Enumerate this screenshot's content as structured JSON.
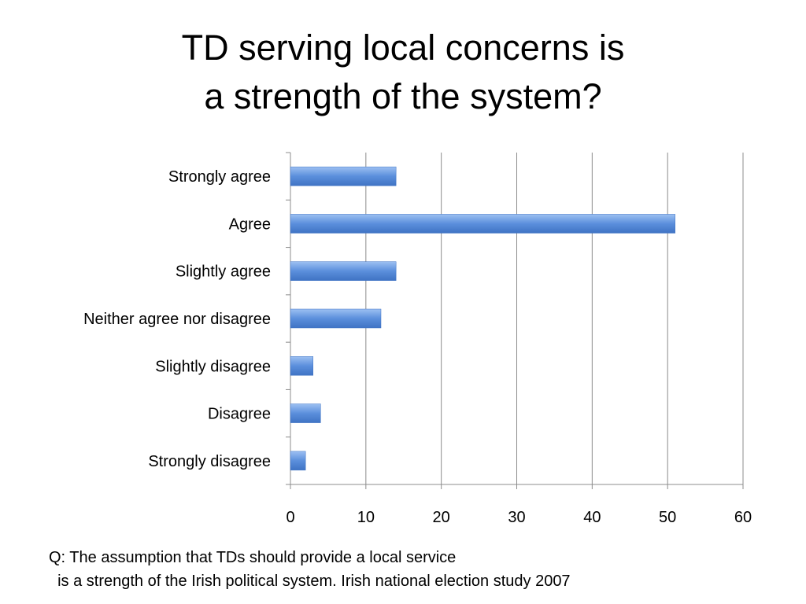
{
  "slide": {
    "title_line1": "TD serving local concerns is",
    "title_line2": "a strength of the system?",
    "caption_line1": "Q: The assumption that TDs should provide a local service",
    "caption_line2": "  is a strength of the Irish political system. Irish national election study 2007"
  },
  "chart_data": {
    "type": "bar",
    "orientation": "horizontal",
    "categories": [
      "Strongly agree",
      "Agree",
      "Slightly agree",
      "Neither agree nor disagree",
      "Slightly disagree",
      "Disagree",
      "Strongly disagree"
    ],
    "values": [
      14,
      51,
      14,
      12,
      3,
      4,
      2
    ],
    "xlim": [
      0,
      60
    ],
    "xticks": [
      0,
      10,
      20,
      30,
      40,
      50,
      60
    ],
    "grid": "vertical",
    "legend": "none",
    "bar_color": "#5b8fdc",
    "bar_color_light": "#9dc0f2",
    "bar_color_dark": "#3f73c4"
  }
}
